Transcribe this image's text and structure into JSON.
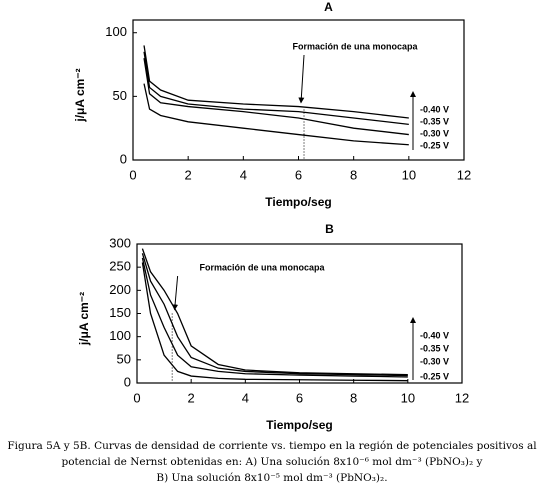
{
  "chart_data": [
    {
      "type": "line",
      "title": "A",
      "x_label": "Tiempo/seg",
      "y_label": "j/μA cm⁻²",
      "annotation": "Formación de una monocapa",
      "xlim": [
        0,
        12
      ],
      "xticks": [
        0,
        2,
        4,
        6,
        8,
        10,
        12
      ],
      "ylim": [
        0,
        110
      ],
      "yticks": [
        0,
        50,
        100
      ],
      "series": [
        {
          "name": "-0.40 V",
          "color": "#000000",
          "x": [
            0.4,
            0.6,
            1,
            2,
            4,
            6,
            8,
            10
          ],
          "values": [
            90,
            62,
            55,
            47,
            44,
            42,
            38,
            33
          ]
        },
        {
          "name": "-0.35 V",
          "color": "#000000",
          "x": [
            0.4,
            0.6,
            1,
            2,
            4,
            6,
            8,
            10
          ],
          "values": [
            85,
            57,
            50,
            44,
            40,
            38,
            33,
            28
          ]
        },
        {
          "name": "-0.30 V",
          "color": "#000000",
          "x": [
            0.4,
            0.6,
            1,
            2,
            4,
            6,
            8,
            10
          ],
          "values": [
            80,
            52,
            45,
            42,
            38,
            33,
            25,
            20
          ]
        },
        {
          "name": "-0.25 V",
          "color": "#000000",
          "x": [
            0.4,
            0.6,
            1,
            2,
            4,
            6,
            8,
            10
          ],
          "values": [
            60,
            40,
            35,
            30,
            25,
            20,
            15,
            12
          ]
        }
      ]
    },
    {
      "type": "line",
      "title": "B",
      "x_label": "Tiempo/seg",
      "y_label": "j/μA cm⁻²",
      "annotation": "Formación de una monocapa",
      "xlim": [
        0,
        12
      ],
      "xticks": [
        0,
        2,
        4,
        6,
        8,
        10,
        12
      ],
      "ylim": [
        0,
        300
      ],
      "yticks": [
        0,
        50,
        100,
        150,
        200,
        250,
        300
      ],
      "series": [
        {
          "name": "-0.40 V",
          "color": "#000000",
          "x": [
            0.2,
            0.5,
            1,
            1.5,
            2,
            3,
            4,
            6,
            8,
            10
          ],
          "values": [
            290,
            240,
            200,
            150,
            80,
            40,
            28,
            22,
            20,
            18
          ]
        },
        {
          "name": "-0.35 V",
          "color": "#000000",
          "x": [
            0.2,
            0.5,
            1,
            1.5,
            2,
            3,
            4,
            6,
            8,
            10
          ],
          "values": [
            280,
            220,
            170,
            100,
            55,
            32,
            25,
            20,
            18,
            16
          ]
        },
        {
          "name": "-0.30 V",
          "color": "#000000",
          "x": [
            0.2,
            0.5,
            1,
            1.5,
            2,
            3,
            4,
            6,
            8,
            10
          ],
          "values": [
            270,
            190,
            120,
            60,
            35,
            25,
            20,
            17,
            15,
            13
          ]
        },
        {
          "name": "-0.25 V",
          "color": "#000000",
          "x": [
            0.2,
            0.5,
            1,
            1.5,
            2,
            3,
            4,
            6,
            8,
            10
          ],
          "values": [
            260,
            150,
            60,
            25,
            15,
            10,
            8,
            7,
            6,
            5
          ]
        }
      ]
    }
  ],
  "caption": [
    "Figura 5A y 5B. Curvas de densidad de corriente vs. tiempo en la región de potenciales positivos al",
    "potencial de Nernst obtenidas en: A) Una solución 8x10⁻⁶ mol dm⁻³ (PbNO₃)₂ y",
    "B) Una solución 8x10⁻⁵ mol dm⁻³ (PbNO₃)₂."
  ]
}
